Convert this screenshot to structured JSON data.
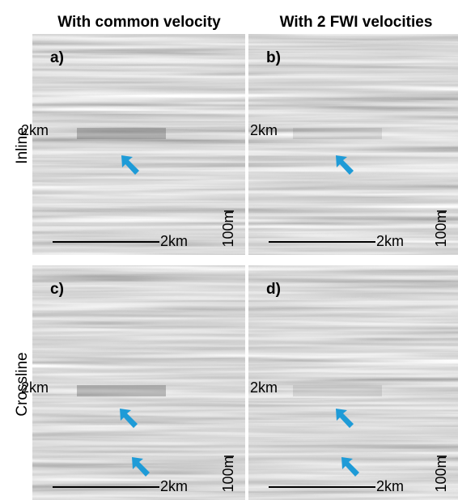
{
  "columns": [
    "With common velocity",
    "With 2 FWI velocities"
  ],
  "rows": [
    "Inline",
    "Crossline"
  ],
  "panels": [
    {
      "label": "a)",
      "depth_label": "2km",
      "scale_length": "2km",
      "scale_height": "100m"
    },
    {
      "label": "b)",
      "depth_label": "2km",
      "scale_length": "2km",
      "scale_height": "100m"
    },
    {
      "label": "c)",
      "depth_label": "2km",
      "scale_length": "2km",
      "scale_height": "100m"
    },
    {
      "label": "d)",
      "depth_label": "2km",
      "scale_length": "2km",
      "scale_height": "100m"
    }
  ]
}
